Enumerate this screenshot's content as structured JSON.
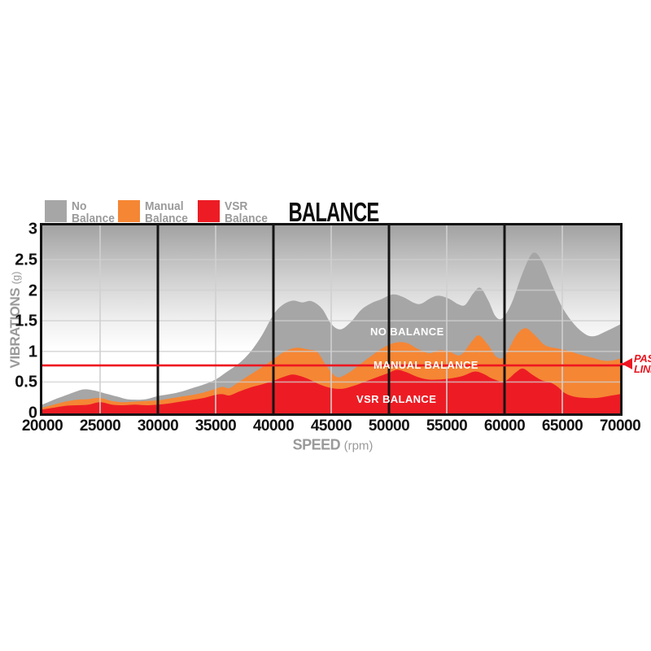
{
  "title": "BALANCE",
  "legend": {
    "items": [
      {
        "line1": "No",
        "line2": "Balance",
        "color": "#a6a6a6"
      },
      {
        "line1": "Manual",
        "line2": "Balance",
        "color": "#f58634"
      },
      {
        "line1": "VSR",
        "line2": "Balance",
        "color": "#ed1c24"
      }
    ]
  },
  "y_axis": {
    "label": "VIBRATIONS",
    "unit": "(g)",
    "ticks": [
      "3",
      "2.5",
      "2",
      "1.5",
      "1",
      "0.5",
      "0"
    ]
  },
  "x_axis": {
    "label": "SPEED",
    "unit": "(rpm)",
    "ticks": [
      "20000",
      "25000",
      "30000",
      "35000",
      "40000",
      "45000",
      "50000",
      "55000",
      "60000",
      "65000",
      "70000"
    ]
  },
  "area_labels": {
    "no_balance": "NO BALANCE",
    "manual_balance": "MANUAL BALANCE",
    "vsr_balance": "VSR BALANCE"
  },
  "pass_line": {
    "line1": "PASS",
    "line2": "LINE",
    "value": 0.77,
    "color": "#ee1620"
  },
  "colors": {
    "gray_fill": "#a6a6a6",
    "orange_fill": "#f58634",
    "red_fill": "#ed1c24",
    "grid_light": "#cfcfcf",
    "zone_line": "#151515",
    "text_gray": "#9a9a9a"
  },
  "chart_data": {
    "type": "area",
    "title": "BALANCE",
    "xlabel": "SPEED (rpm)",
    "ylabel": "VIBRATIONS (g)",
    "xlim": [
      20000,
      70000
    ],
    "ylim": [
      0,
      3.05
    ],
    "x_tick_step": 5000,
    "y_tick_step": 0.5,
    "grid": {
      "horizontal_at": [
        0.5,
        1,
        1.5,
        2,
        2.5
      ],
      "vertical_light_at": [
        25000,
        35000,
        45000,
        55000,
        65000
      ],
      "vertical_dark_at": [
        30000,
        40000,
        50000,
        60000
      ]
    },
    "pass_line_value": 0.77,
    "legend_position": "top-left",
    "background_gradient": [
      "#a2a2a2",
      "#ffffff"
    ],
    "series": [
      {
        "name": "No Balance",
        "color": "#a6a6a6",
        "points": [
          [
            20000,
            0.13
          ],
          [
            21000,
            0.21
          ],
          [
            22000,
            0.28
          ],
          [
            23000,
            0.35
          ],
          [
            23700,
            0.38
          ],
          [
            24500,
            0.36
          ],
          [
            25500,
            0.31
          ],
          [
            26500,
            0.26
          ],
          [
            27300,
            0.22
          ],
          [
            28200,
            0.21
          ],
          [
            29000,
            0.22
          ],
          [
            30000,
            0.27
          ],
          [
            31000,
            0.3
          ],
          [
            32000,
            0.34
          ],
          [
            33000,
            0.4
          ],
          [
            34000,
            0.46
          ],
          [
            35000,
            0.54
          ],
          [
            36000,
            0.67
          ],
          [
            37000,
            0.8
          ],
          [
            38000,
            0.99
          ],
          [
            39000,
            1.26
          ],
          [
            40000,
            1.6
          ],
          [
            40800,
            1.76
          ],
          [
            41700,
            1.83
          ],
          [
            42500,
            1.8
          ],
          [
            43300,
            1.82
          ],
          [
            44200,
            1.7
          ],
          [
            45000,
            1.45
          ],
          [
            45800,
            1.36
          ],
          [
            46700,
            1.48
          ],
          [
            47600,
            1.68
          ],
          [
            48500,
            1.79
          ],
          [
            49300,
            1.85
          ],
          [
            50300,
            1.93
          ],
          [
            51200,
            1.89
          ],
          [
            52200,
            1.79
          ],
          [
            52800,
            1.78
          ],
          [
            53600,
            1.87
          ],
          [
            54300,
            1.91
          ],
          [
            55200,
            1.86
          ],
          [
            56000,
            1.77
          ],
          [
            56600,
            1.76
          ],
          [
            57300,
            1.95
          ],
          [
            57900,
            2.04
          ],
          [
            58600,
            1.83
          ],
          [
            59200,
            1.58
          ],
          [
            59800,
            1.54
          ],
          [
            60600,
            1.78
          ],
          [
            61500,
            2.25
          ],
          [
            62200,
            2.55
          ],
          [
            62700,
            2.61
          ],
          [
            63300,
            2.45
          ],
          [
            64200,
            2.05
          ],
          [
            65000,
            1.72
          ],
          [
            66000,
            1.45
          ],
          [
            67000,
            1.28
          ],
          [
            67800,
            1.25
          ],
          [
            68800,
            1.33
          ],
          [
            70000,
            1.44
          ]
        ]
      },
      {
        "name": "Manual Balance",
        "color": "#f58634",
        "points": [
          [
            20000,
            0.08
          ],
          [
            21000,
            0.13
          ],
          [
            22000,
            0.18
          ],
          [
            23000,
            0.21
          ],
          [
            24000,
            0.22
          ],
          [
            25000,
            0.24
          ],
          [
            26000,
            0.19
          ],
          [
            27000,
            0.17
          ],
          [
            28000,
            0.18
          ],
          [
            29000,
            0.19
          ],
          [
            30000,
            0.2
          ],
          [
            31000,
            0.23
          ],
          [
            32000,
            0.26
          ],
          [
            33000,
            0.29
          ],
          [
            34000,
            0.33
          ],
          [
            35000,
            0.39
          ],
          [
            35600,
            0.42
          ],
          [
            36200,
            0.4
          ],
          [
            37000,
            0.5
          ],
          [
            38000,
            0.62
          ],
          [
            39000,
            0.74
          ],
          [
            40000,
            0.87
          ],
          [
            41000,
            1.0
          ],
          [
            42000,
            1.06
          ],
          [
            43000,
            1.03
          ],
          [
            43800,
            0.99
          ],
          [
            44600,
            0.76
          ],
          [
            45500,
            0.58
          ],
          [
            46500,
            0.65
          ],
          [
            47500,
            0.79
          ],
          [
            48500,
            0.93
          ],
          [
            49500,
            1.06
          ],
          [
            50500,
            1.14
          ],
          [
            51500,
            1.14
          ],
          [
            52500,
            1.04
          ],
          [
            53500,
            0.97
          ],
          [
            54400,
            1.02
          ],
          [
            55300,
            0.99
          ],
          [
            56200,
            0.94
          ],
          [
            57200,
            1.17
          ],
          [
            57800,
            1.26
          ],
          [
            58600,
            1.1
          ],
          [
            59300,
            0.91
          ],
          [
            60000,
            0.92
          ],
          [
            61000,
            1.26
          ],
          [
            61800,
            1.38
          ],
          [
            62600,
            1.27
          ],
          [
            63500,
            1.1
          ],
          [
            64500,
            1.05
          ],
          [
            65500,
            1.01
          ],
          [
            66500,
            0.95
          ],
          [
            67500,
            0.9
          ],
          [
            68500,
            0.85
          ],
          [
            69300,
            0.85
          ],
          [
            70000,
            0.88
          ]
        ]
      },
      {
        "name": "VSR Balance",
        "color": "#ed1c24",
        "points": [
          [
            20000,
            0.05
          ],
          [
            21000,
            0.08
          ],
          [
            22000,
            0.11
          ],
          [
            23000,
            0.12
          ],
          [
            24000,
            0.13
          ],
          [
            25000,
            0.17
          ],
          [
            26000,
            0.13
          ],
          [
            27000,
            0.12
          ],
          [
            28000,
            0.13
          ],
          [
            29000,
            0.12
          ],
          [
            30000,
            0.13
          ],
          [
            31000,
            0.15
          ],
          [
            32000,
            0.18
          ],
          [
            33000,
            0.21
          ],
          [
            34000,
            0.24
          ],
          [
            35000,
            0.29
          ],
          [
            35600,
            0.3
          ],
          [
            36200,
            0.28
          ],
          [
            37000,
            0.34
          ],
          [
            38000,
            0.41
          ],
          [
            39000,
            0.46
          ],
          [
            40000,
            0.52
          ],
          [
            41000,
            0.59
          ],
          [
            41800,
            0.62
          ],
          [
            43000,
            0.55
          ],
          [
            44000,
            0.46
          ],
          [
            45000,
            0.4
          ],
          [
            46000,
            0.39
          ],
          [
            47000,
            0.44
          ],
          [
            48000,
            0.51
          ],
          [
            49000,
            0.58
          ],
          [
            50000,
            0.65
          ],
          [
            50700,
            0.7
          ],
          [
            51500,
            0.66
          ],
          [
            52500,
            0.58
          ],
          [
            53400,
            0.54
          ],
          [
            54400,
            0.54
          ],
          [
            55400,
            0.56
          ],
          [
            56400,
            0.6
          ],
          [
            57400,
            0.67
          ],
          [
            58200,
            0.63
          ],
          [
            59000,
            0.55
          ],
          [
            60000,
            0.51
          ],
          [
            61000,
            0.66
          ],
          [
            61600,
            0.72
          ],
          [
            62400,
            0.62
          ],
          [
            63200,
            0.53
          ],
          [
            64000,
            0.49
          ],
          [
            64600,
            0.42
          ],
          [
            65200,
            0.32
          ],
          [
            66000,
            0.26
          ],
          [
            67000,
            0.24
          ],
          [
            68000,
            0.24
          ],
          [
            69000,
            0.27
          ],
          [
            70000,
            0.3
          ]
        ]
      }
    ]
  }
}
